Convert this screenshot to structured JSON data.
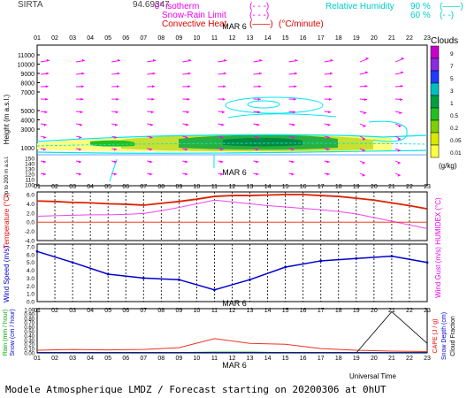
{
  "header": {
    "site": "SIRTA",
    "coords": "94.69347",
    "isotherm_label": "0° isotherm",
    "snow_rain_label": "Snow-Rain Limit",
    "convective_label": "Convective Heat",
    "convective_unit": "(°C/minute)",
    "rh_label": "Relative Humidity",
    "rh_90": "90 %",
    "rh_60": "60 %"
  },
  "footer": {
    "universal_time": "Universal Time",
    "title": "Modele Atmospherique LMDZ / Forecast starting on 20200306 at 0hUT"
  },
  "hours": [
    "01",
    "02",
    "03",
    "04",
    "05",
    "06",
    "07",
    "08",
    "09",
    "10",
    "11",
    "12",
    "13",
    "14",
    "15",
    "16",
    "17",
    "18",
    "19",
    "20",
    "21",
    "22",
    "23"
  ],
  "date_label": "MAR 6",
  "clouds": {
    "title": "Clouds",
    "unit": "(g/kg)",
    "levels": [
      "9",
      "7",
      "5",
      "3",
      "1",
      "0.5",
      "0.2",
      "0.05",
      "0.01"
    ],
    "colors": [
      "#cc00cc",
      "#8a2be2",
      "#1e3cff",
      "#00bfbf",
      "#00a040",
      "#20c020",
      "#80d000",
      "#d8e800",
      "#ffff40"
    ]
  },
  "colors": {
    "wind_arrow": "#ff00ff",
    "rh_contour": "#00e5ee",
    "temperature": "#dd2200",
    "humidex": "#ee44ee",
    "wind_speed": "#0000cc",
    "cape": "#ee3322",
    "axis_label_red": "#ee0000"
  },
  "chart_data": [
    {
      "type": "scatter",
      "panel": "altitude-wind",
      "xlabel": "",
      "ylabel": "Height (m a.s.l.)",
      "ylabel2": "Up to 200 m a.s.l.",
      "yticks_upper": [
        1000,
        3000,
        4000,
        5000,
        7000,
        8000,
        9000,
        10000,
        11000
      ],
      "yticks_lower": [
        100,
        110,
        120,
        130,
        140,
        150
      ],
      "ytick_labels_upper": [
        "1000",
        "3000",
        "4000",
        "5000",
        "7000",
        "8000",
        "9000",
        "10000",
        "11000"
      ],
      "ytick_labels_lower": [
        "100",
        "110",
        "120",
        "130",
        "140",
        "150"
      ],
      "note": "wind vectors and cloud water content",
      "cloud_band": {
        "base_m": 1000,
        "top_m": 2000,
        "from_hour": 1,
        "to_hour": 21
      }
    },
    {
      "type": "line",
      "panel": "temperature",
      "ylabel": "Temperature (°C)",
      "ylabel_right": "HUMIDEX (°C)",
      "ylim": [
        -4,
        6
      ],
      "ytick_labels": [
        "6.0",
        "4.0",
        "2.0",
        "0.0",
        "-2.0",
        "-4.0"
      ],
      "x": [
        1,
        2,
        3,
        4,
        5,
        6,
        7,
        8,
        9,
        10,
        11,
        12,
        13,
        14,
        15,
        16,
        17,
        18,
        19,
        20,
        21,
        22,
        23
      ],
      "series": [
        {
          "name": "Temperature",
          "values": [
            4.6,
            4.5,
            4.3,
            4.2,
            4.0,
            3.9,
            3.7,
            4.1,
            4.5,
            5.0,
            5.6,
            5.8,
            5.8,
            5.9,
            6.0,
            6.0,
            5.8,
            5.6,
            5.2,
            4.8,
            4.2,
            3.6,
            2.9
          ]
        },
        {
          "name": "HUMIDEX",
          "values": [
            1.3,
            1.4,
            1.5,
            1.6,
            1.6,
            1.7,
            1.9,
            2.5,
            3.2,
            4.0,
            4.8,
            4.4,
            4.0,
            3.6,
            3.3,
            3.0,
            2.7,
            2.3,
            1.8,
            1.0,
            0.2,
            -0.6,
            -1.4
          ]
        }
      ]
    },
    {
      "type": "line",
      "panel": "wind",
      "ylabel": "Wind Speed (m/s)",
      "ylabel_right": "Wind Gust (m/s)",
      "ylim": [
        0,
        7
      ],
      "ytick_labels": [
        "7.0",
        "6.0",
        "5.0",
        "4.0",
        "3.0",
        "2.0",
        "1.0",
        "0.0"
      ],
      "x": [
        1,
        3,
        5,
        7,
        9,
        11,
        13,
        15,
        17,
        19,
        21,
        23
      ],
      "series": [
        {
          "name": "Wind Speed",
          "values": [
            6.4,
            5.0,
            3.5,
            3.0,
            2.8,
            1.5,
            2.8,
            4.4,
            5.2,
            5.5,
            5.8,
            5.0
          ]
        }
      ]
    },
    {
      "type": "line",
      "panel": "precipitation",
      "ylabel": "Rain (mm / hour)",
      "ylabel2": "Snow (cm / hour)",
      "ylabel_right": "CAPE (J / g)",
      "ylabel_right2": "Snow Depth (cm)",
      "ylabel_right3": "Cloud Fraction",
      "ylim": [
        0,
        1
      ],
      "ytick_labels": [
        "1.00",
        "0.90",
        "0.80",
        "0.70",
        "0.60",
        "0.50",
        "0.40",
        "0.30",
        "0.20",
        "0.10",
        "0.00"
      ],
      "x": [
        1,
        3,
        5,
        7,
        9,
        11,
        13,
        15,
        17,
        19,
        21,
        23
      ],
      "series": [
        {
          "name": "CAPE",
          "values": [
            0.06,
            0.08,
            0.07,
            0.08,
            0.12,
            0.33,
            0.22,
            0.2,
            0.1,
            0.06,
            0.04,
            0.03
          ]
        },
        {
          "name": "Rain",
          "values": [
            0.01,
            0.01,
            0.01,
            0.01,
            0.01,
            0.02,
            0.02,
            0.01,
            0.01,
            0.01,
            0.01,
            0.01
          ]
        },
        {
          "name": "Cloud Fraction",
          "values": [
            0.0,
            0.0,
            0.0,
            0.0,
            0.0,
            0.0,
            0.0,
            0.0,
            0.0,
            0.0,
            0.95,
            0.22
          ]
        }
      ]
    }
  ]
}
